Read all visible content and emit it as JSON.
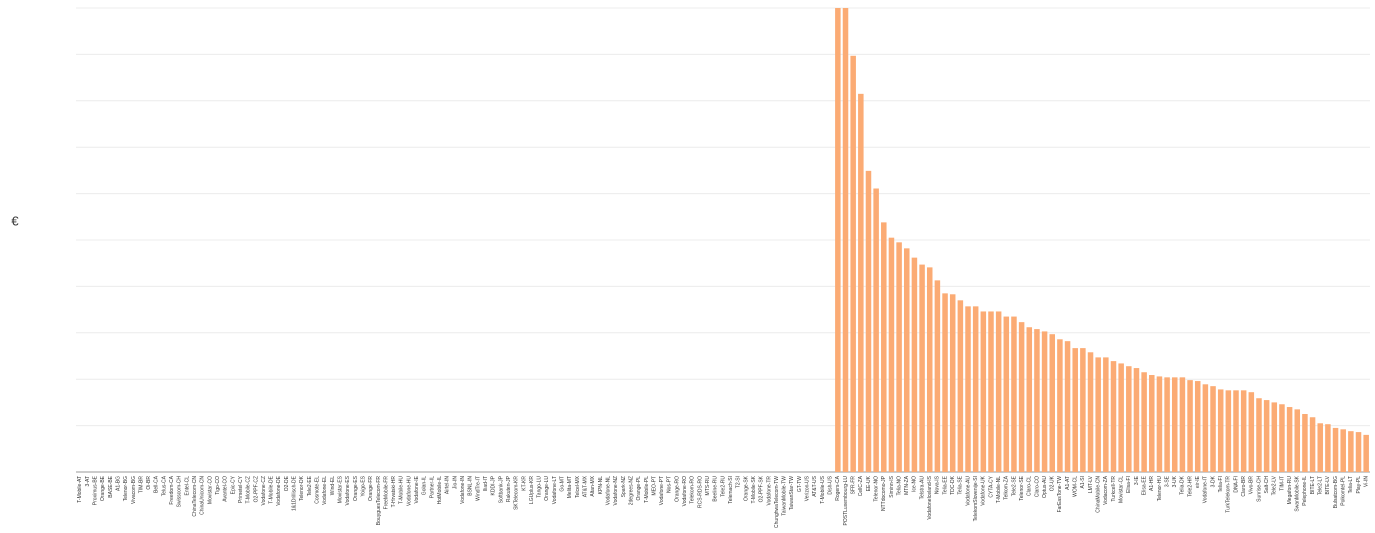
{
  "chart_data": {
    "type": "bar",
    "y_label": "€",
    "color": "#fbab74",
    "categories": [
      "T-Mobile-AT",
      "3-AT",
      "Proximus-BE",
      "Orange-BE",
      "BASE-BE",
      "A1-BG",
      "Telenor-BG",
      "Vivacom-BG",
      "TIM-BR",
      "Oi-BR",
      "Bell-CA",
      "Telus-CA",
      "Freedom-CA",
      "Swisscom-CH",
      "Entel-CL",
      "ChinaTelecom-CN",
      "ChinaUnicom-CN",
      "Movistar-CO",
      "Tigo-CO",
      "Avantel-CO",
      "Epic-CY",
      "Primetel-CY",
      "T-Mobile-CZ",
      "O2-PPF-CZ",
      "Vodafone-CZ",
      "T-Mobile-DE",
      "Vodafone-DE",
      "O2-DE",
      "1&1Drillisch-DE",
      "Telenor-DK",
      "Tele2-EE",
      "Cosmote-EL",
      "Vodafone-EL",
      "Wind-EL",
      "Movistar-ES",
      "Vodafone-ES",
      "Orange-ES",
      "Yoigo-ES",
      "Orange-FR",
      "BouyguesTelecom-FR",
      "FreeMobile-FR",
      "T-Hrvatski-HR",
      "T-Mobile-HU",
      "Vodafone-HU",
      "Vodafone-IE",
      "Golan-IL",
      "Partner-IL",
      "HotMobile-IL",
      "Airtel-IN",
      "Jio-IN",
      "Vodafone-IN",
      "BSNL-IN",
      "WindTre-IT",
      "Iliad-IT",
      "KDDI-JP",
      "Softbank-JP",
      "Rakuten-JP",
      "SKTelecom-KR",
      "KT-KR",
      "LGUplus-KR",
      "Tango-LU",
      "Orange-LU",
      "Vodafone-LT",
      "Go-MT",
      "Melita-MT",
      "Telcel-MX",
      "AT&T-MX",
      "Altan-MX",
      "KPN-NL",
      "Vodafone-NL",
      "Vodafone-NZ",
      "Spark-NZ",
      "2degrees-NZ",
      "Orange-PL",
      "T-Mobile-PL",
      "MEO-PT",
      "Vodafone-PT",
      "Nos-PT",
      "Orange-RO",
      "Vodafone-RO",
      "Telekom-RO",
      "RCS-RDS-RO",
      "MTS-RU",
      "Beeline-RU",
      "Tele2-RU",
      "Telemach-SI",
      "T2-SI",
      "Orange-SK",
      "T-Mobile-SK",
      "O2-PPF-SK",
      "Vodafone-TR",
      "ChunghwaTelecom-TW",
      "TaiwanMobile-TW",
      "TaiwanStar-TW",
      "GT-TW",
      "Verizon-US",
      "AT&T-US",
      "T-Mobile-US",
      "Dish-US",
      "Rogers-CA",
      "POSTLuxembourg-LU",
      "SFR-FR",
      "CellC-ZA",
      "EE-UK",
      "Telenor-NO",
      "NTTdocomo-JP",
      "Siminn-IS",
      "Telia-NO",
      "MTN-ZA",
      "Ice-NO",
      "Telstra-AU",
      "VodafoneIceland-IS",
      "Nova-IS",
      "Telia-EE",
      "TDC-DK",
      "Telia-SE",
      "Vodafone-AU",
      "TelekomSlovenije-SI",
      "Vodafone-UK",
      "CYTA-CY",
      "T-Mobile-NL",
      "Telkom-ZA",
      "Tele2-SE",
      "Telenor-SE",
      "Claro-CL",
      "Claro-CO",
      "Optus-AU",
      "O2-UK",
      "FarEasTone-TW",
      "A1-AT",
      "WOM-CL",
      "A1-SI",
      "LMT-LV",
      "ChinaMobile-CN",
      "Vodacom-ZA",
      "Turkcell-TR",
      "Movistar-CL",
      "Elisa-FI",
      "3-IE",
      "Elisa-EE",
      "A1-HR",
      "Telenor-HU",
      "3-SE",
      "3-UK",
      "Telia-DK",
      "Tele2-HR",
      "eir-IE",
      "Vodafone-IT",
      "3-DK",
      "Telia-FI",
      "TurkTelekom-TR",
      "DNA-FI",
      "Claro-BR",
      "Vivo-BR",
      "Sunrise-CH",
      "Salt-CH",
      "Tele2-LV",
      "TIM-IT",
      "Megafon-RU",
      "SwanMobile-SK",
      "Pelephone-IL",
      "BITE-LT",
      "Tele2-LT",
      "BITE-LV",
      "Bulsatcom-BG",
      "Polkomtel-PL",
      "Telia-LT",
      "Play-PL",
      "Vi-IN"
    ],
    "values": [
      0,
      0,
      0,
      0,
      0,
      0,
      0,
      0,
      0,
      0,
      0,
      0,
      0,
      0,
      0,
      0,
      0,
      0,
      0,
      0,
      0,
      0,
      0,
      0,
      0,
      0,
      0,
      0,
      0,
      0,
      0,
      0,
      0,
      0,
      0,
      0,
      0,
      0,
      0,
      0,
      0,
      0,
      0,
      0,
      0,
      0,
      0,
      0,
      0,
      0,
      0,
      0,
      0,
      0,
      0,
      0,
      0,
      0,
      0,
      0,
      0,
      0,
      0,
      0,
      0,
      0,
      0,
      0,
      0,
      0,
      0,
      0,
      0,
      0,
      0,
      0,
      0,
      0,
      0,
      0,
      0,
      0,
      0,
      0,
      0,
      0,
      0,
      0,
      0,
      0,
      0,
      0,
      0,
      0,
      0,
      0,
      0,
      0,
      0,
      10,
      10,
      8.97,
      8.15,
      6.49,
      6.11,
      5.38,
      5.05,
      4.95,
      4.82,
      4.62,
      4.47,
      4.41,
      4.13,
      3.85,
      3.83,
      3.7,
      3.57,
      3.57,
      3.46,
      3.46,
      3.46,
      3.35,
      3.35,
      3.23,
      3.12,
      3.08,
      3.03,
      2.97,
      2.86,
      2.82,
      2.67,
      2.67,
      2.58,
      2.47,
      2.47,
      2.39,
      2.34,
      2.28,
      2.24,
      2.15,
      2.09,
      2.06,
      2.04,
      2.04,
      2.04,
      1.98,
      1.96,
      1.89,
      1.85,
      1.78,
      1.76,
      1.76,
      1.76,
      1.72,
      1.59,
      1.55,
      1.5,
      1.46,
      1.4,
      1.35,
      1.25,
      1.18,
      1.05,
      1.03,
      0.95,
      0.92,
      0.88,
      0.86,
      0.8
    ],
    "ylim": [
      0,
      10
    ],
    "ygrid": [
      0,
      1,
      2,
      3,
      4,
      5,
      6,
      7,
      8,
      9,
      10
    ],
    "grid": true
  }
}
